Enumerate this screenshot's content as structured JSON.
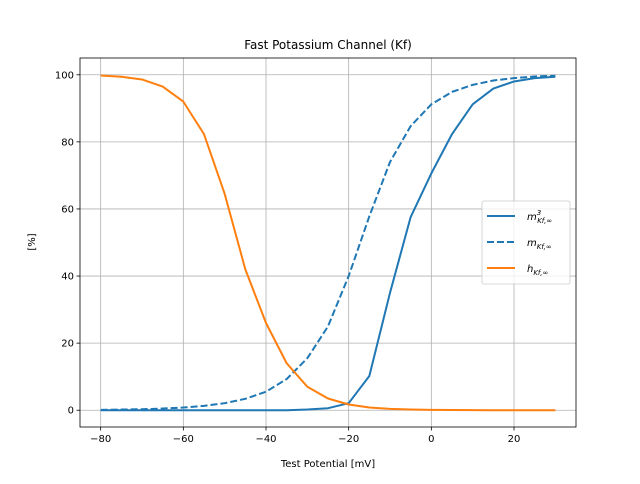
{
  "chart_data": {
    "type": "line",
    "title": "Fast Potassium Channel (Kf)",
    "xlabel": "Test Potential [mV]",
    "ylabel": "[%]",
    "xlim": [
      -85,
      35
    ],
    "ylim": [
      -5,
      105
    ],
    "xticks": [
      -80,
      -60,
      -40,
      -20,
      0,
      20
    ],
    "yticks": [
      0,
      20,
      40,
      60,
      80,
      100
    ],
    "grid": true,
    "legend_position": "center-right",
    "x": [
      -80,
      -75,
      -70,
      -65,
      -60,
      -55,
      -50,
      -45,
      -40,
      -35,
      -30,
      -25,
      -20,
      -15,
      -10,
      -5,
      0,
      5,
      10,
      15,
      20,
      25,
      30
    ],
    "series": [
      {
        "name": "m3_Kf_inf",
        "legend_main": "m",
        "legend_sup": "3",
        "legend_sub": "Kf,∞",
        "color": "#1f77b4",
        "style": "solid",
        "values": [
          0.0,
          0.0,
          0.0,
          0.0,
          0.0,
          0.0,
          0.0,
          0.0,
          0.0,
          0.0,
          0.2,
          0.6,
          2.1,
          10.2,
          35.0,
          57.6,
          70.6,
          82.3,
          91.2,
          95.9,
          98.0,
          99.0,
          99.4
        ]
      },
      {
        "name": "m_Kf_inf",
        "legend_main": "m",
        "legend_sup": "",
        "legend_sub": "Kf,∞",
        "color": "#1f77b4",
        "style": "dashed",
        "values": [
          0.1,
          0.2,
          0.3,
          0.5,
          0.8,
          1.3,
          2.1,
          3.4,
          5.5,
          9.3,
          15.5,
          25.0,
          40.0,
          57.8,
          74.0,
          84.7,
          91.2,
          94.9,
          97.0,
          98.3,
          99.0,
          99.5,
          99.7
        ]
      },
      {
        "name": "h_Kf_inf",
        "legend_main": "h",
        "legend_sup": "",
        "legend_sub": "Kf,∞",
        "color": "#ff7f0e",
        "style": "solid",
        "values": [
          99.8,
          99.4,
          98.6,
          96.5,
          92.0,
          82.3,
          64.5,
          42.0,
          26.0,
          14.0,
          7.0,
          3.5,
          1.7,
          0.8,
          0.4,
          0.2,
          0.1,
          0.05,
          0.02,
          0.01,
          0.0,
          0.0,
          0.0
        ]
      }
    ]
  }
}
